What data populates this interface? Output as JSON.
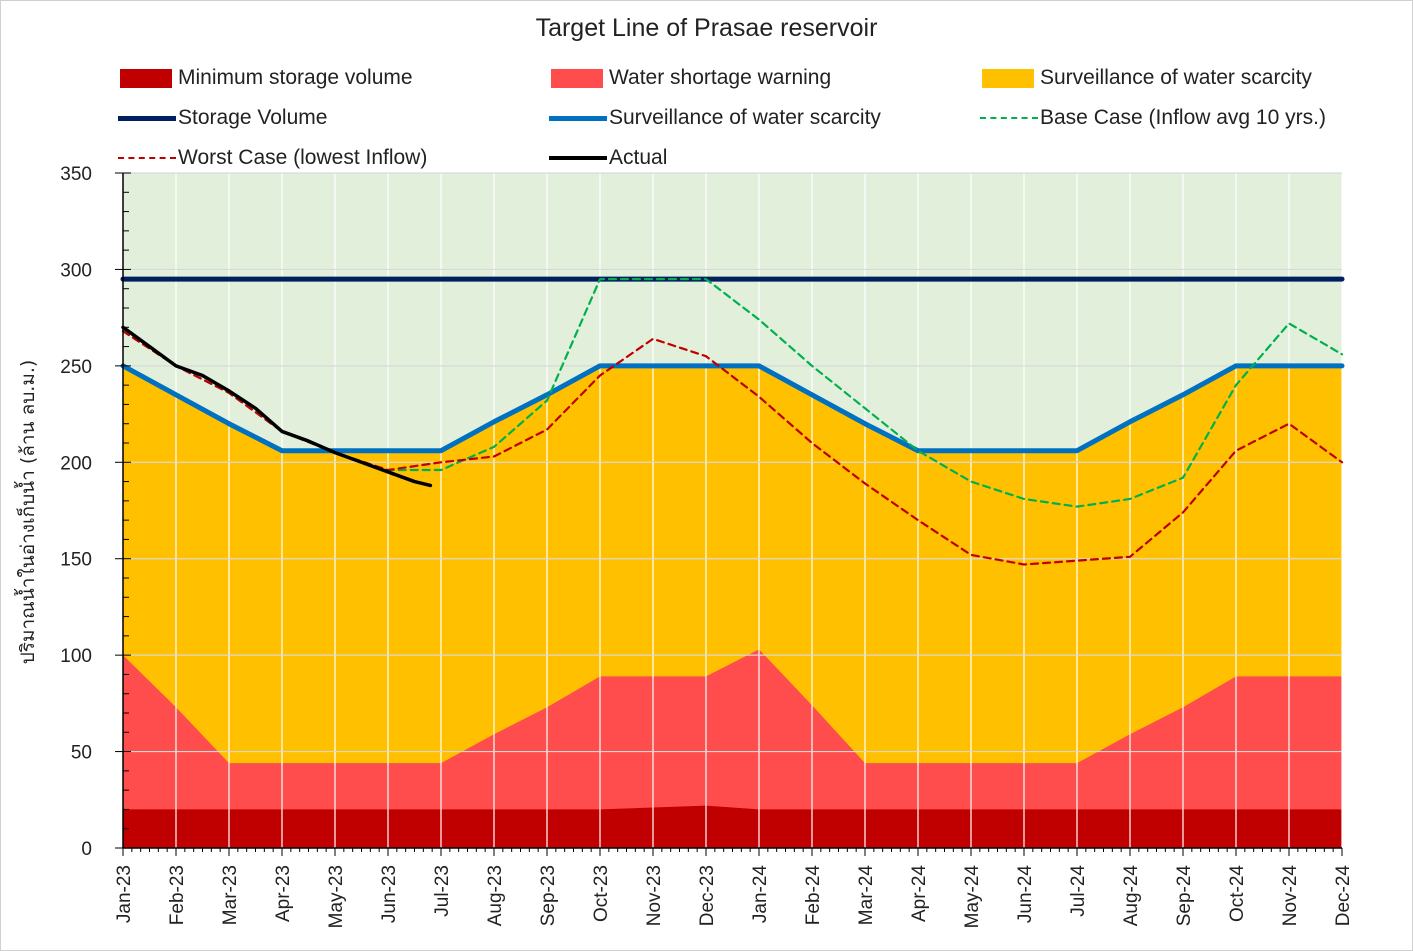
{
  "chart_data": {
    "type": "area",
    "title": "Target Line of Prasae reservoir",
    "ylabel": "ปริมาณน้ำในอ่างเก็บน้ำ (ล้าน ลบ.ม.)",
    "xlabel": "",
    "ylim": [
      0,
      350
    ],
    "yticks": [
      0,
      50,
      100,
      150,
      200,
      250,
      300,
      350
    ],
    "grid": true,
    "legend_position": "top",
    "categories": [
      "Jan-23",
      "Feb-23",
      "Mar-23",
      "Apr-23",
      "May-23",
      "Jun-23",
      "Jul-23",
      "Aug-23",
      "Sep-23",
      "Oct-23",
      "Nov-23",
      "Dec-23",
      "Jan-24",
      "Feb-24",
      "Mar-24",
      "Apr-24",
      "May-24",
      "Jun-24",
      "Jul-24",
      "Aug-24",
      "Sep-24",
      "Oct-24",
      "Nov-24",
      "Dec-24"
    ],
    "series": [
      {
        "name": "Minimum storage volume",
        "kind": "area",
        "color": "#c00000",
        "values": [
          20,
          20,
          20,
          20,
          20,
          20,
          20,
          20,
          20,
          20,
          21,
          22,
          20,
          20,
          20,
          20,
          20,
          20,
          20,
          20,
          20,
          20,
          20,
          20
        ]
      },
      {
        "name": "Water shortage warning",
        "kind": "area",
        "color": "#ff4d4d",
        "values": [
          100,
          73,
          44,
          44,
          44,
          44,
          44,
          59,
          73,
          89,
          89,
          89,
          103,
          74,
          44,
          44,
          44,
          44,
          44,
          59,
          73,
          89,
          89,
          89
        ]
      },
      {
        "name": "Surveillance of water scarcity",
        "kind": "area",
        "color": "#ffc000",
        "values": [
          250,
          235,
          220,
          206,
          206,
          206,
          206,
          221,
          235,
          250,
          250,
          250,
          250,
          235,
          220,
          206,
          206,
          206,
          206,
          221,
          235,
          250,
          250,
          250
        ]
      },
      {
        "name": "Storage Volume",
        "kind": "line",
        "color": "#002060",
        "dash": "solid",
        "values": [
          295,
          295,
          295,
          295,
          295,
          295,
          295,
          295,
          295,
          295,
          295,
          295,
          295,
          295,
          295,
          295,
          295,
          295,
          295,
          295,
          295,
          295,
          295,
          295
        ]
      },
      {
        "name": "Surveillance of water scarcity",
        "kind": "line",
        "color": "#0070c0",
        "dash": "solid",
        "values": [
          250,
          235,
          220,
          206,
          206,
          206,
          206,
          221,
          235,
          250,
          250,
          250,
          250,
          235,
          220,
          206,
          206,
          206,
          206,
          221,
          235,
          250,
          250,
          250
        ]
      },
      {
        "name": "Base Case (Inflow avg 10 yrs.)",
        "kind": "line",
        "color": "#00b050",
        "dash": "dashed",
        "values": [
          268,
          250,
          236,
          216,
          205,
          196,
          196,
          208,
          232,
          295,
          295,
          295,
          274,
          250,
          228,
          206,
          190,
          181,
          177,
          181,
          192,
          240,
          272,
          256
        ]
      },
      {
        "name": "Worst Case (lowest Inflow)",
        "kind": "line",
        "color": "#c00000",
        "dash": "dashed",
        "values": [
          268,
          250,
          236,
          216,
          205,
          196,
          200,
          203,
          217,
          245,
          264,
          255,
          234,
          210,
          189,
          170,
          152,
          147,
          149,
          151,
          174,
          206,
          220,
          200
        ]
      },
      {
        "name": "Actual",
        "kind": "line",
        "color": "#000000",
        "dash": "solid",
        "x": [
          0,
          0.5,
          1,
          1.5,
          2,
          2.5,
          3,
          3.5,
          4,
          4.5,
          5,
          5.5,
          5.8
        ],
        "values": [
          270,
          260,
          250,
          245,
          237,
          228,
          216,
          211,
          205,
          200,
          195,
          190,
          188
        ]
      }
    ],
    "colors": {
      "plot_background": "#e2efda",
      "grid": "#ffffff",
      "axis": "#000000"
    }
  }
}
